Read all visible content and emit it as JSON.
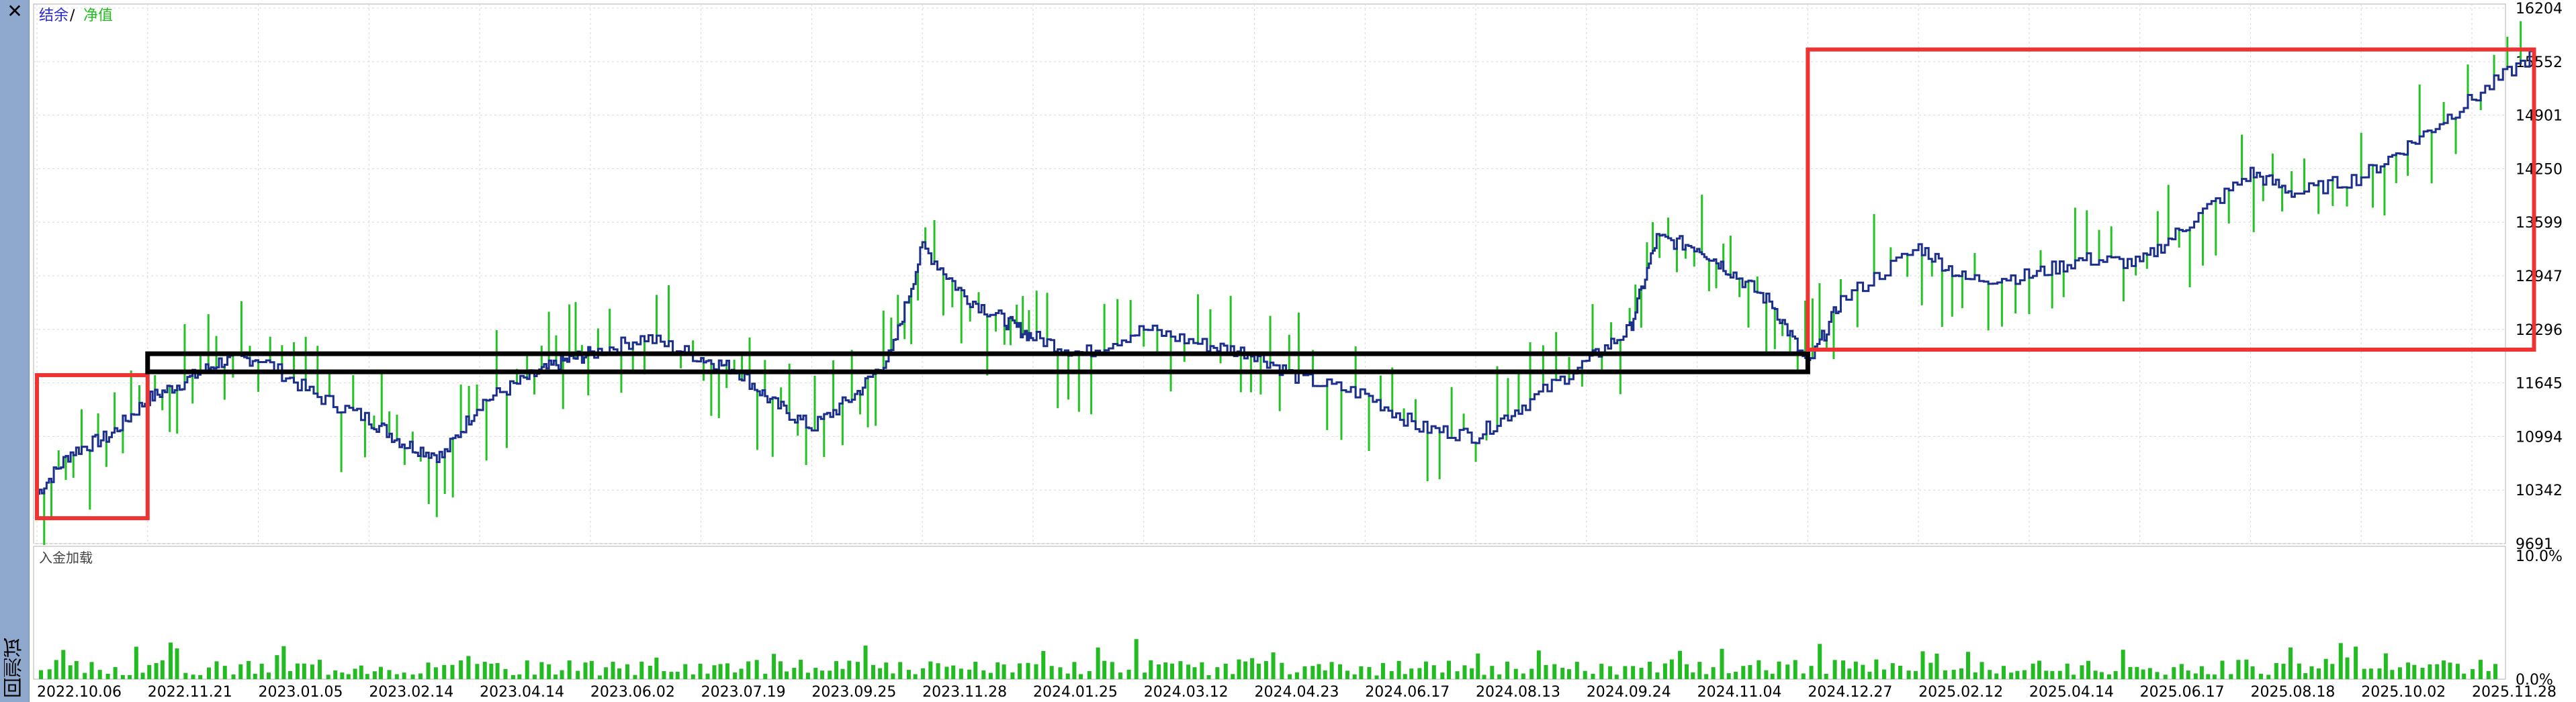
{
  "window": {
    "close_glyph": "✕",
    "side_label": "回测试"
  },
  "chart_data": [
    {
      "type": "line",
      "legend": {
        "items": [
          {
            "label": "结余",
            "color": "#2a2ad0"
          },
          {
            "label": "净值",
            "color": "#1fbf1f"
          }
        ],
        "separator": "/",
        "placement": "top-left"
      },
      "colors": {
        "balance": "#1c2f8c",
        "equity": "#22c322",
        "grid": "#d8d8d8",
        "box_red": "#ee3333",
        "box_black": "#000000"
      },
      "y_ticks": [
        "16204",
        "15552",
        "14901",
        "14250",
        "13599",
        "12947",
        "12296",
        "11645",
        "10994",
        "10342",
        "9691"
      ],
      "ylim": [
        9691,
        16204
      ],
      "grid": true,
      "x_ticks": [
        "2022.10.06",
        "2022.11.21",
        "2023.01.05",
        "2023.02.14",
        "2023.04.14",
        "2023.06.02",
        "2023.07.19",
        "2023.09.25",
        "2023.11.28",
        "2024.01.25",
        "2024.03.12",
        "2024.04.23",
        "2024.06.17",
        "2024.08.13",
        "2024.09.24",
        "2024.11.04",
        "2024.12.27",
        "2025.02.12",
        "2025.04.14",
        "2025.06.17",
        "2025.08.18",
        "2025.10.02",
        "2025.11.28"
      ],
      "series": [
        {
          "name": "结余",
          "points": [
            [
              "2022.10.06",
              10300
            ],
            [
              "2022.10.20",
              10800
            ],
            [
              "2022.11.05",
              11000
            ],
            [
              "2022.11.21",
              11450
            ],
            [
              "2022.12.05",
              11650
            ],
            [
              "2022.12.20",
              11900
            ],
            [
              "2023.01.05",
              11950
            ],
            [
              "2023.01.25",
              11500
            ],
            [
              "2023.02.14",
              11200
            ],
            [
              "2023.03.05",
              10900
            ],
            [
              "2023.03.25",
              10750
            ],
            [
              "2023.04.14",
              11400
            ],
            [
              "2023.05.05",
              11700
            ],
            [
              "2023.05.20",
              11900
            ],
            [
              "2023.06.02",
              12000
            ],
            [
              "2023.06.25",
              12200
            ],
            [
              "2023.07.19",
              11950
            ],
            [
              "2023.08.10",
              11800
            ],
            [
              "2023.09.01",
              11400
            ],
            [
              "2023.09.25",
              11100
            ],
            [
              "2023.10.20",
              11500
            ],
            [
              "2023.11.10",
              12000
            ],
            [
              "2023.11.28",
              13300
            ],
            [
              "2023.12.20",
              12700
            ],
            [
              "2024.01.10",
              12400
            ],
            [
              "2024.01.25",
              12200
            ],
            [
              "2024.02.15",
              12000
            ],
            [
              "2024.03.12",
              12300
            ],
            [
              "2024.04.05",
              12100
            ],
            [
              "2024.04.23",
              12000
            ],
            [
              "2024.05.15",
              11700
            ],
            [
              "2024.06.17",
              11500
            ],
            [
              "2024.07.15",
              11100
            ],
            [
              "2024.08.13",
              11000
            ],
            [
              "2024.09.01",
              11400
            ],
            [
              "2024.09.24",
              11900
            ],
            [
              "2024.10.10",
              12300
            ],
            [
              "2024.10.20",
              13400
            ],
            [
              "2024.11.04",
              13300
            ],
            [
              "2024.11.20",
              13000
            ],
            [
              "2024.12.10",
              12600
            ],
            [
              "2024.12.27",
              11850
            ],
            [
              "2025.01.10",
              12650
            ],
            [
              "2025.02.12",
              13300
            ],
            [
              "2025.03.10",
              12900
            ],
            [
              "2025.04.14",
              12950
            ],
            [
              "2025.05.15",
              13150
            ],
            [
              "2025.06.17",
              13100
            ],
            [
              "2025.07.15",
              13600
            ],
            [
              "2025.08.18",
              14200
            ],
            [
              "2025.09.05",
              13950
            ],
            [
              "2025.10.02",
              14150
            ],
            [
              "2025.10.30",
              14600
            ],
            [
              "2025.11.28",
              15100
            ],
            [
              "2025.12.30",
              15650
            ]
          ]
        },
        {
          "name": "净值",
          "note_visible_as": "green spikes around balance"
        }
      ]
    },
    {
      "type": "bar",
      "legend": "入金加载",
      "y_ticks": [
        "10.0%",
        "0.0%"
      ],
      "ylim": [
        0,
        10
      ],
      "bar_color": "#22bb22",
      "value_profile": "frequent thin bars mostly 0.3%–2%, occasional spikes up to ~3%"
    }
  ],
  "annotations": {
    "boxes": [
      {
        "color": "red",
        "from": "2022.10.06",
        "to": "2022.11.21",
        "y_from": 10000,
        "y_to": 11740
      },
      {
        "color": "black",
        "from": "2022.11.21",
        "to": "2024.12.27",
        "y_from": 11780,
        "y_to": 12000
      },
      {
        "color": "red",
        "from": "2024.12.27",
        "to": "2025.12.30",
        "y_from": 12050,
        "y_to": 15700
      }
    ]
  }
}
